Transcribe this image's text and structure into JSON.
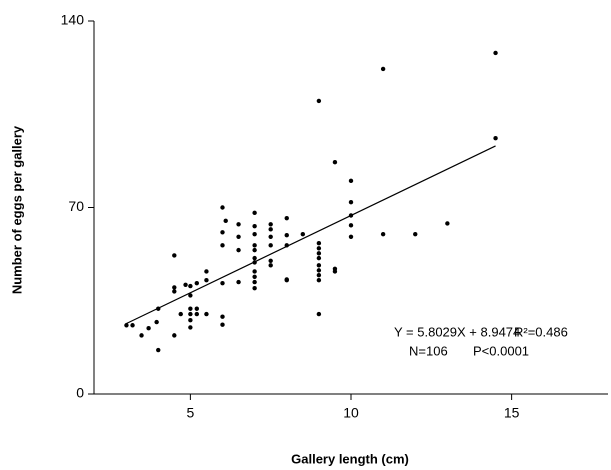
{
  "chart_data": {
    "type": "scatter",
    "xlabel": "Gallery length (cm)",
    "ylabel": "Number of eggs per gallery",
    "xlim": [
      2,
      18
    ],
    "xticks": [
      5,
      10,
      15
    ],
    "ylim": [
      0,
      140
    ],
    "yticks": [
      0,
      70,
      140
    ],
    "grid": false,
    "annotations": [
      "Y = 5.8029X + 8.9474",
      "R²=0.486",
      "N=106",
      "P<0.0001"
    ],
    "series": [
      {
        "type": "scatter",
        "color": "#000000",
        "x": [
          3.01,
          3.2,
          3.48,
          3.7,
          3.95,
          4,
          4,
          4.5,
          4.5,
          4.5,
          4.5,
          4.7,
          4.85,
          5,
          5,
          5,
          5,
          5,
          5,
          5.2,
          5.2,
          5.2,
          5.5,
          5.5,
          5.5,
          6,
          6,
          6,
          6,
          6,
          6,
          6.1,
          6.5,
          6.5,
          6.5,
          6.5,
          7,
          7,
          7,
          7,
          7,
          7,
          7,
          7,
          7,
          7,
          7,
          7.5,
          7.5,
          7.5,
          7.5,
          7.5,
          7.5,
          8,
          8,
          8,
          8,
          8,
          8.5,
          9,
          9,
          9,
          9,
          9,
          9,
          9,
          9,
          9,
          9,
          9.5,
          9.5,
          9.5,
          10,
          10,
          10,
          10,
          10,
          11,
          11,
          12,
          13,
          14.5,
          14.5
        ],
        "values": [
          25.8,
          25.8,
          22,
          24.7,
          27,
          32,
          16.5,
          52,
          40,
          38.5,
          22,
          30,
          41,
          40.5,
          37,
          32,
          30,
          25,
          27.7,
          41.6,
          32,
          30,
          46,
          42.7,
          30,
          70,
          60.7,
          55.8,
          41.6,
          29,
          26,
          65,
          63.7,
          59,
          54,
          42,
          68,
          63,
          60,
          55.8,
          54,
          51,
          49.4,
          46,
          44,
          42,
          39.7,
          63.7,
          61.8,
          59,
          55.8,
          50,
          48.3,
          55.8,
          59.6,
          66,
          43,
          42.7,
          60,
          110,
          56.6,
          54.7,
          52.8,
          51,
          48.3,
          46.4,
          44.6,
          42.7,
          30,
          87,
          47,
          46,
          80,
          72,
          67,
          63.3,
          59,
          122,
          60,
          60,
          64,
          128,
          96
        ]
      },
      {
        "type": "line",
        "color": "#000000",
        "x": [
          3,
          14.5
        ],
        "values": [
          26.4,
          93.1
        ]
      }
    ]
  }
}
